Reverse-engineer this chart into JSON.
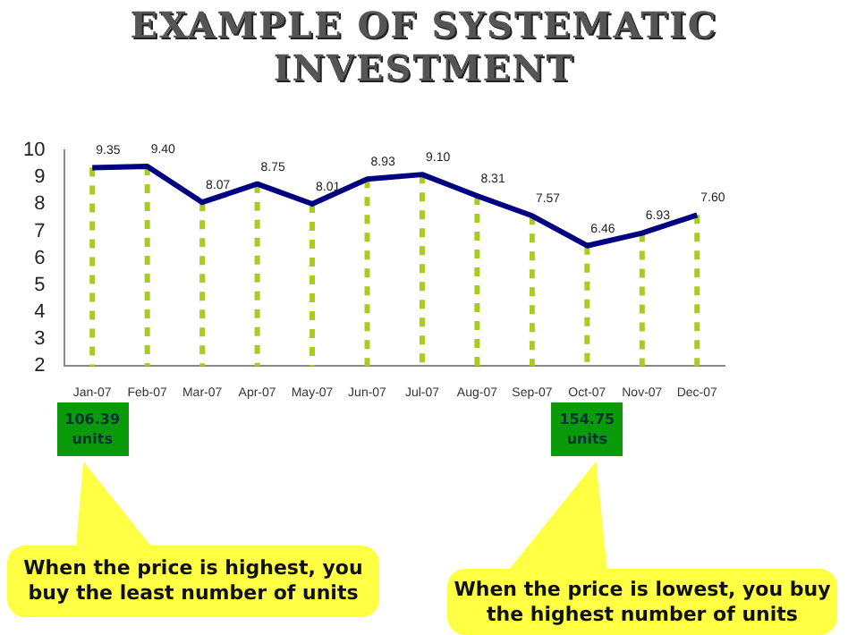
{
  "chart_data": {
    "type": "line",
    "title": "EXAMPLE OF SYSTEMATIC INVESTMENT",
    "categories": [
      "Jan-07",
      "Feb-07",
      "Mar-07",
      "Apr-07",
      "May-07",
      "Jun-07",
      "Jul-07",
      "Aug-07",
      "Sep-07",
      "Oct-07",
      "Nov-07",
      "Dec-07"
    ],
    "series": [
      {
        "color": "#000080",
        "values": [
          9.35,
          9.4,
          8.07,
          8.75,
          8.01,
          8.93,
          9.1,
          8.31,
          7.57,
          6.46,
          6.93,
          7.6
        ]
      }
    ],
    "value_labels": [
      "9.35",
      "9.40",
      "8.07",
      "8.75",
      "8.01",
      "8.93",
      "9.10",
      "8.31",
      "7.57",
      "6.46",
      "6.93",
      "7.60"
    ],
    "ylim": [
      2,
      10
    ],
    "yticks": [
      2,
      3,
      4,
      5,
      6,
      7,
      8,
      9,
      10
    ],
    "grid": "x",
    "legend": false,
    "marker": "none",
    "annotations": [
      "106.39 units",
      "154.75 units",
      "When the price is highest, you buy the least number of units",
      "When the price is lowest, you buy the highest number of units"
    ]
  }
}
